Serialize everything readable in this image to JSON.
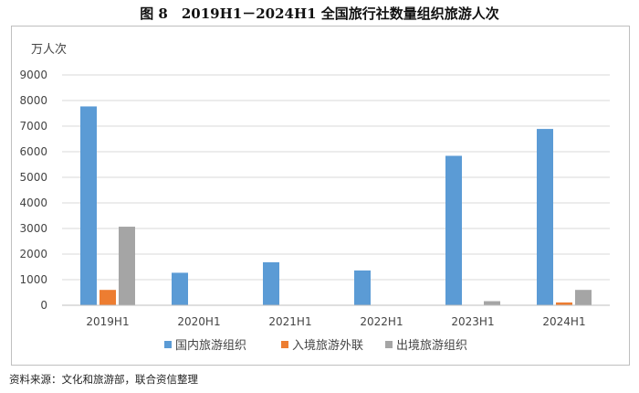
{
  "figure": {
    "title": "图 8　2019H1－2024H1 全国旅行社数量组织旅游人次",
    "source": "资料来源：文化和旅游部，联合资信整理"
  },
  "chart_data": {
    "type": "bar",
    "ylabel": "万人次",
    "ylim": [
      0,
      9000
    ],
    "yticks": [
      0,
      1000,
      2000,
      3000,
      4000,
      5000,
      6000,
      7000,
      8000,
      9000
    ],
    "grid": true,
    "legend_position": "bottom",
    "categories": [
      "2019H1",
      "2020H1",
      "2021H1",
      "2022H1",
      "2023H1",
      "2024H1"
    ],
    "series": [
      {
        "name": "国内旅游组织",
        "color": "#5b9bd5",
        "values": [
          7770,
          1270,
          1680,
          1360,
          5840,
          6890
        ]
      },
      {
        "name": "入境旅游外联",
        "color": "#ed7d31",
        "values": [
          600,
          0,
          0,
          0,
          0,
          110
        ]
      },
      {
        "name": "出境旅游组织",
        "color": "#a5a5a5",
        "values": [
          3070,
          0,
          0,
          0,
          160,
          600
        ]
      }
    ]
  }
}
